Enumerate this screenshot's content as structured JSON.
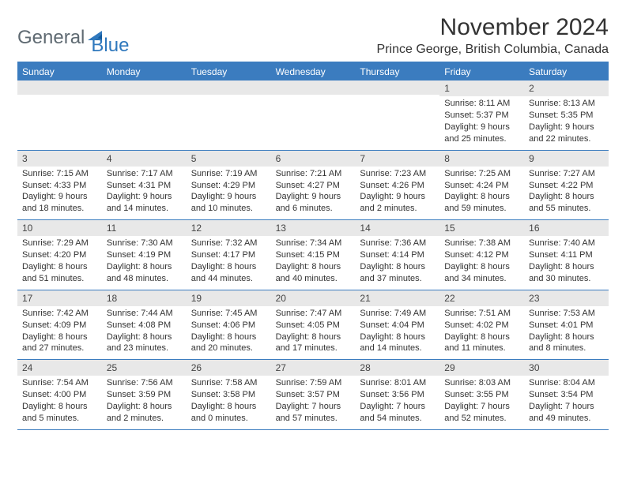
{
  "logo": {
    "text1": "General",
    "text2": "Blue",
    "color_general": "#5f6a72",
    "color_blue": "#2f78bd"
  },
  "title": {
    "month": "November 2024",
    "location": "Prince George, British Columbia, Canada"
  },
  "colors": {
    "header_bg": "#3b7cbf",
    "daynum_bg": "#e8e8e8",
    "border": "#3b7cbf",
    "text": "#333333"
  },
  "day_names": [
    "Sunday",
    "Monday",
    "Tuesday",
    "Wednesday",
    "Thursday",
    "Friday",
    "Saturday"
  ],
  "weeks": [
    [
      {
        "n": "",
        "sunrise": "",
        "sunset": "",
        "daylight": ""
      },
      {
        "n": "",
        "sunrise": "",
        "sunset": "",
        "daylight": ""
      },
      {
        "n": "",
        "sunrise": "",
        "sunset": "",
        "daylight": ""
      },
      {
        "n": "",
        "sunrise": "",
        "sunset": "",
        "daylight": ""
      },
      {
        "n": "",
        "sunrise": "",
        "sunset": "",
        "daylight": ""
      },
      {
        "n": "1",
        "sunrise": "Sunrise: 8:11 AM",
        "sunset": "Sunset: 5:37 PM",
        "daylight": "Daylight: 9 hours and 25 minutes."
      },
      {
        "n": "2",
        "sunrise": "Sunrise: 8:13 AM",
        "sunset": "Sunset: 5:35 PM",
        "daylight": "Daylight: 9 hours and 22 minutes."
      }
    ],
    [
      {
        "n": "3",
        "sunrise": "Sunrise: 7:15 AM",
        "sunset": "Sunset: 4:33 PM",
        "daylight": "Daylight: 9 hours and 18 minutes."
      },
      {
        "n": "4",
        "sunrise": "Sunrise: 7:17 AM",
        "sunset": "Sunset: 4:31 PM",
        "daylight": "Daylight: 9 hours and 14 minutes."
      },
      {
        "n": "5",
        "sunrise": "Sunrise: 7:19 AM",
        "sunset": "Sunset: 4:29 PM",
        "daylight": "Daylight: 9 hours and 10 minutes."
      },
      {
        "n": "6",
        "sunrise": "Sunrise: 7:21 AM",
        "sunset": "Sunset: 4:27 PM",
        "daylight": "Daylight: 9 hours and 6 minutes."
      },
      {
        "n": "7",
        "sunrise": "Sunrise: 7:23 AM",
        "sunset": "Sunset: 4:26 PM",
        "daylight": "Daylight: 9 hours and 2 minutes."
      },
      {
        "n": "8",
        "sunrise": "Sunrise: 7:25 AM",
        "sunset": "Sunset: 4:24 PM",
        "daylight": "Daylight: 8 hours and 59 minutes."
      },
      {
        "n": "9",
        "sunrise": "Sunrise: 7:27 AM",
        "sunset": "Sunset: 4:22 PM",
        "daylight": "Daylight: 8 hours and 55 minutes."
      }
    ],
    [
      {
        "n": "10",
        "sunrise": "Sunrise: 7:29 AM",
        "sunset": "Sunset: 4:20 PM",
        "daylight": "Daylight: 8 hours and 51 minutes."
      },
      {
        "n": "11",
        "sunrise": "Sunrise: 7:30 AM",
        "sunset": "Sunset: 4:19 PM",
        "daylight": "Daylight: 8 hours and 48 minutes."
      },
      {
        "n": "12",
        "sunrise": "Sunrise: 7:32 AM",
        "sunset": "Sunset: 4:17 PM",
        "daylight": "Daylight: 8 hours and 44 minutes."
      },
      {
        "n": "13",
        "sunrise": "Sunrise: 7:34 AM",
        "sunset": "Sunset: 4:15 PM",
        "daylight": "Daylight: 8 hours and 40 minutes."
      },
      {
        "n": "14",
        "sunrise": "Sunrise: 7:36 AM",
        "sunset": "Sunset: 4:14 PM",
        "daylight": "Daylight: 8 hours and 37 minutes."
      },
      {
        "n": "15",
        "sunrise": "Sunrise: 7:38 AM",
        "sunset": "Sunset: 4:12 PM",
        "daylight": "Daylight: 8 hours and 34 minutes."
      },
      {
        "n": "16",
        "sunrise": "Sunrise: 7:40 AM",
        "sunset": "Sunset: 4:11 PM",
        "daylight": "Daylight: 8 hours and 30 minutes."
      }
    ],
    [
      {
        "n": "17",
        "sunrise": "Sunrise: 7:42 AM",
        "sunset": "Sunset: 4:09 PM",
        "daylight": "Daylight: 8 hours and 27 minutes."
      },
      {
        "n": "18",
        "sunrise": "Sunrise: 7:44 AM",
        "sunset": "Sunset: 4:08 PM",
        "daylight": "Daylight: 8 hours and 23 minutes."
      },
      {
        "n": "19",
        "sunrise": "Sunrise: 7:45 AM",
        "sunset": "Sunset: 4:06 PM",
        "daylight": "Daylight: 8 hours and 20 minutes."
      },
      {
        "n": "20",
        "sunrise": "Sunrise: 7:47 AM",
        "sunset": "Sunset: 4:05 PM",
        "daylight": "Daylight: 8 hours and 17 minutes."
      },
      {
        "n": "21",
        "sunrise": "Sunrise: 7:49 AM",
        "sunset": "Sunset: 4:04 PM",
        "daylight": "Daylight: 8 hours and 14 minutes."
      },
      {
        "n": "22",
        "sunrise": "Sunrise: 7:51 AM",
        "sunset": "Sunset: 4:02 PM",
        "daylight": "Daylight: 8 hours and 11 minutes."
      },
      {
        "n": "23",
        "sunrise": "Sunrise: 7:53 AM",
        "sunset": "Sunset: 4:01 PM",
        "daylight": "Daylight: 8 hours and 8 minutes."
      }
    ],
    [
      {
        "n": "24",
        "sunrise": "Sunrise: 7:54 AM",
        "sunset": "Sunset: 4:00 PM",
        "daylight": "Daylight: 8 hours and 5 minutes."
      },
      {
        "n": "25",
        "sunrise": "Sunrise: 7:56 AM",
        "sunset": "Sunset: 3:59 PM",
        "daylight": "Daylight: 8 hours and 2 minutes."
      },
      {
        "n": "26",
        "sunrise": "Sunrise: 7:58 AM",
        "sunset": "Sunset: 3:58 PM",
        "daylight": "Daylight: 8 hours and 0 minutes."
      },
      {
        "n": "27",
        "sunrise": "Sunrise: 7:59 AM",
        "sunset": "Sunset: 3:57 PM",
        "daylight": "Daylight: 7 hours and 57 minutes."
      },
      {
        "n": "28",
        "sunrise": "Sunrise: 8:01 AM",
        "sunset": "Sunset: 3:56 PM",
        "daylight": "Daylight: 7 hours and 54 minutes."
      },
      {
        "n": "29",
        "sunrise": "Sunrise: 8:03 AM",
        "sunset": "Sunset: 3:55 PM",
        "daylight": "Daylight: 7 hours and 52 minutes."
      },
      {
        "n": "30",
        "sunrise": "Sunrise: 8:04 AM",
        "sunset": "Sunset: 3:54 PM",
        "daylight": "Daylight: 7 hours and 49 minutes."
      }
    ]
  ]
}
